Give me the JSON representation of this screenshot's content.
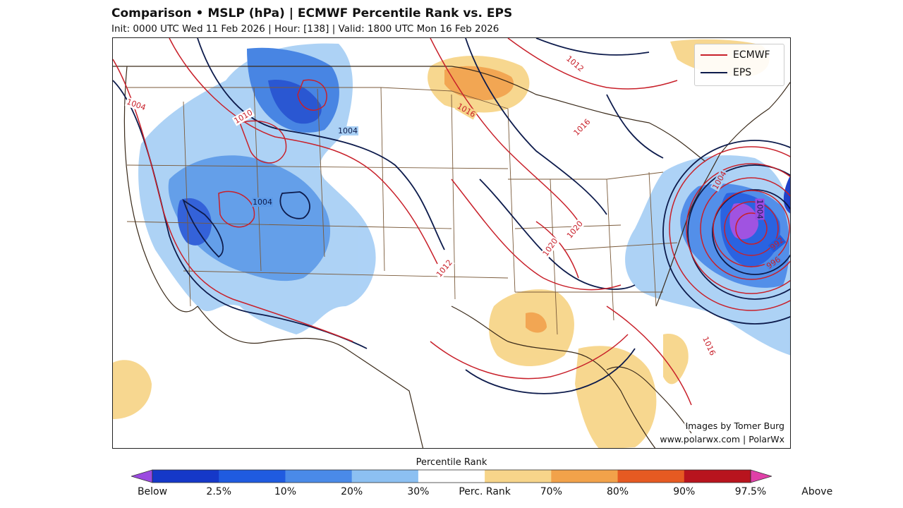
{
  "header": {
    "title": "Comparison • MSLP (hPa) | ECMWF Percentile Rank vs. EPS",
    "subtitle": "Init: 0000 UTC Wed 11 Feb 2026 | Hour: [138] | Valid: 1800 UTC Mon 16 Feb 2026"
  },
  "map": {
    "legend": {
      "ecmwf_label": "ECMWF",
      "ecmwf_color": "#c8202a",
      "eps_label": "EPS",
      "eps_color": "#0d1b4c"
    },
    "credits": {
      "line1": "Images by Tomer Burg",
      "line2": "www.polarwx.com | PolarWx"
    },
    "contour_labels": [
      {
        "text": "1004"
      },
      {
        "text": "1010"
      },
      {
        "text": "1004"
      },
      {
        "text": "1004"
      },
      {
        "text": "1012"
      },
      {
        "text": "1016"
      },
      {
        "text": "1012"
      },
      {
        "text": "1016"
      },
      {
        "text": "1020"
      },
      {
        "text": "1020"
      },
      {
        "text": "1004"
      },
      {
        "text": "1016"
      },
      {
        "text": "992"
      },
      {
        "text": "996"
      },
      {
        "text": "1004"
      }
    ]
  },
  "colorbar": {
    "title": "Percentile Rank",
    "labels": [
      "Below",
      "2.5%",
      "10%",
      "20%",
      "30%",
      "Perc. Rank",
      "70%",
      "80%",
      "90%",
      "97.5%",
      "Above"
    ],
    "colors": [
      "#9b4ae0",
      "#1538c8",
      "#1f5be0",
      "#4a8ae8",
      "#8cc0f2",
      "#ffffff",
      "#f7d58a",
      "#f2a24a",
      "#e65a22",
      "#b8141e",
      "#e040a8"
    ]
  }
}
